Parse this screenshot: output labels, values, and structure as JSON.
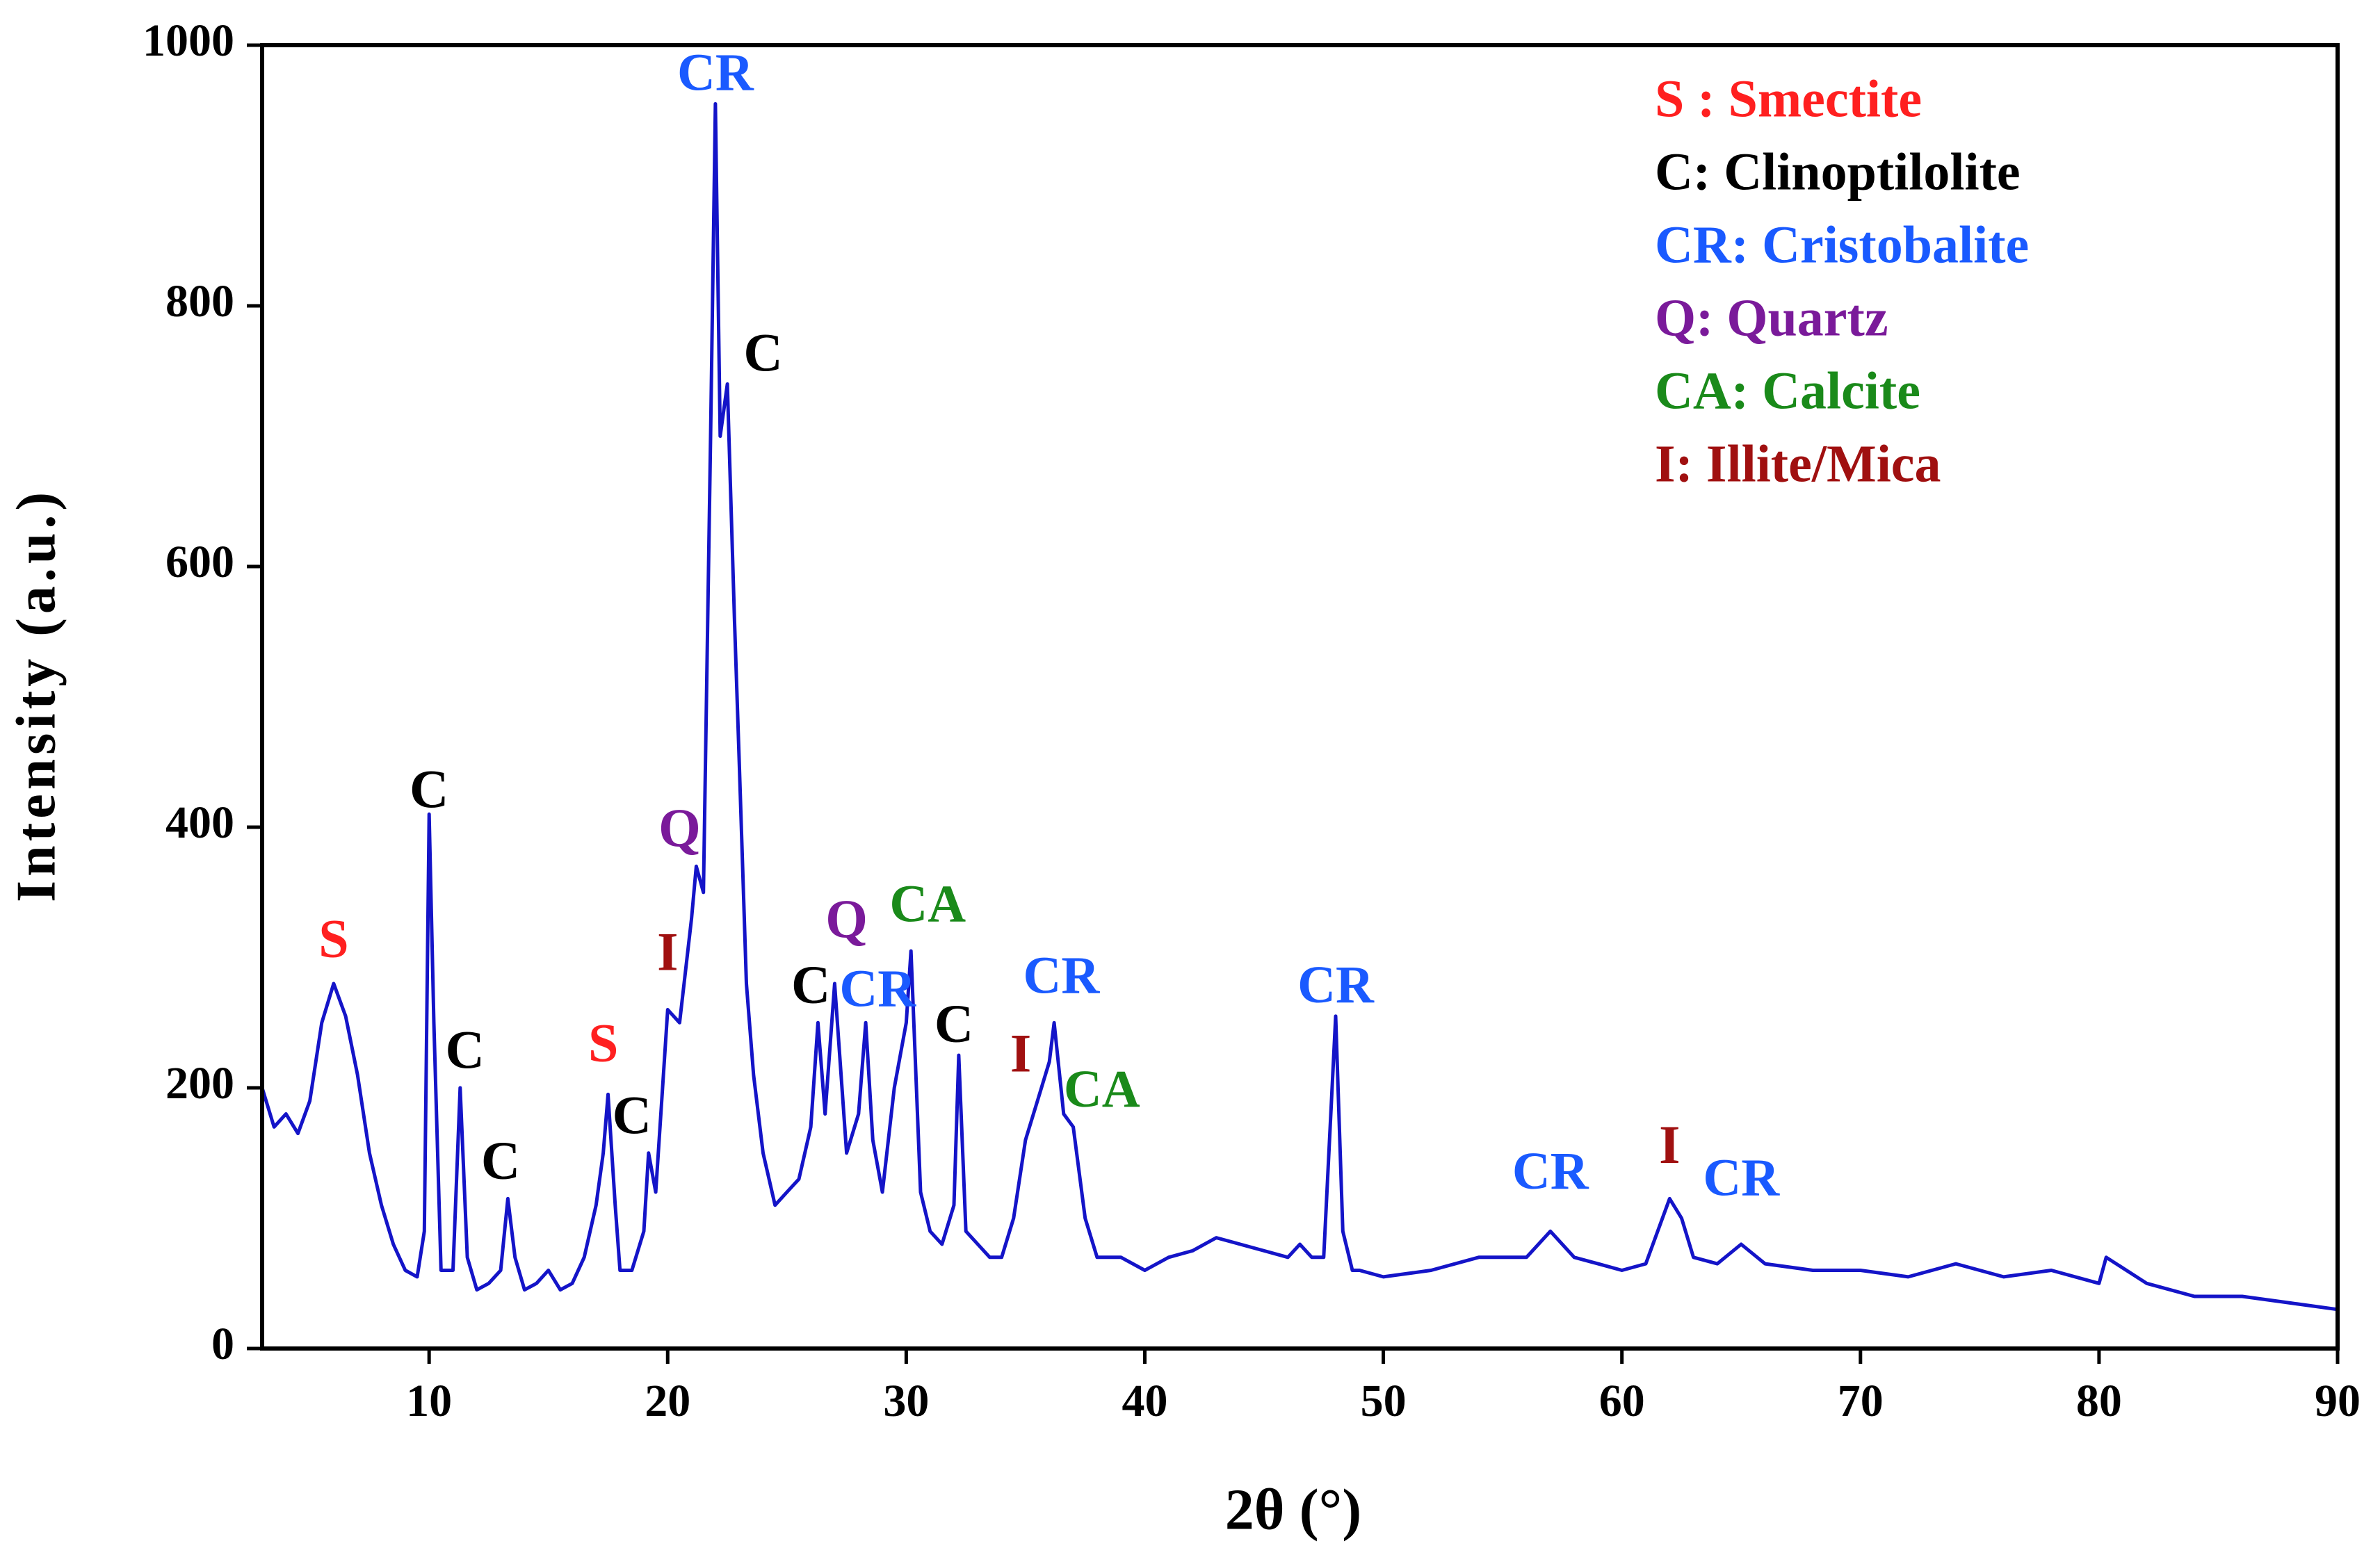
{
  "chart_data": {
    "type": "line",
    "xlabel": "2θ (°)",
    "ylabel": "Intensity (a.u.)",
    "xlim": [
      3,
      90
    ],
    "ylim": [
      0,
      1000
    ],
    "xticks": [
      10,
      20,
      30,
      40,
      50,
      60,
      70,
      80,
      90
    ],
    "yticks": [
      0,
      200,
      400,
      600,
      800,
      1000
    ],
    "x": [
      3,
      3.5,
      4,
      4.5,
      5,
      5.5,
      6,
      6.5,
      7,
      7.5,
      8,
      8.5,
      9,
      9.5,
      9.8,
      10,
      10.2,
      10.5,
      11,
      11.3,
      11.6,
      12,
      12.5,
      13,
      13.3,
      13.6,
      14,
      14.5,
      15,
      15.5,
      16,
      16.5,
      17,
      17.3,
      17.5,
      17.8,
      18,
      18.5,
      19,
      19.2,
      19.5,
      20,
      20.5,
      21,
      21.2,
      21.5,
      21.8,
      22,
      22.2,
      22.5,
      22.8,
      23,
      23.3,
      23.6,
      24,
      24.5,
      25,
      25.5,
      26,
      26.3,
      26.6,
      27,
      27.5,
      28,
      28.3,
      28.6,
      29,
      29.5,
      30,
      30.2,
      30.6,
      31,
      31.5,
      32,
      32.2,
      32.5,
      33,
      33.5,
      34,
      34.5,
      35,
      35.5,
      36,
      36.2,
      36.6,
      37,
      37.5,
      38,
      39,
      40,
      41,
      42,
      43,
      44,
      45,
      46,
      46.5,
      47,
      47.5,
      48,
      48.3,
      48.7,
      49,
      50,
      52,
      54,
      55,
      56,
      57,
      58,
      59,
      60,
      61,
      62,
      62.5,
      63,
      64,
      65,
      66,
      68,
      70,
      72,
      74,
      76,
      78,
      80,
      80.3,
      82,
      84,
      86,
      88,
      90
    ],
    "series": [
      {
        "color": "#1414c8",
        "values": [
          200,
          170,
          180,
          165,
          190,
          250,
          280,
          255,
          210,
          150,
          110,
          80,
          60,
          55,
          90,
          410,
          250,
          60,
          60,
          200,
          70,
          45,
          50,
          60,
          115,
          70,
          45,
          50,
          60,
          45,
          50,
          70,
          110,
          150,
          195,
          110,
          60,
          60,
          90,
          150,
          120,
          260,
          250,
          330,
          370,
          350,
          700,
          955,
          700,
          740,
          560,
          450,
          280,
          210,
          150,
          110,
          120,
          130,
          170,
          250,
          180,
          280,
          150,
          180,
          250,
          160,
          120,
          200,
          250,
          305,
          120,
          90,
          80,
          110,
          225,
          90,
          80,
          70,
          70,
          100,
          160,
          190,
          220,
          250,
          180,
          170,
          100,
          70,
          70,
          60,
          70,
          75,
          85,
          80,
          75,
          70,
          80,
          70,
          70,
          255,
          90,
          60,
          60,
          55,
          60,
          70,
          70,
          70,
          90,
          70,
          65,
          60,
          65,
          115,
          100,
          70,
          65,
          80,
          65,
          60,
          60,
          55,
          65,
          55,
          60,
          50,
          70,
          50,
          40,
          40,
          35,
          30
        ]
      }
    ],
    "annotations": [
      {
        "text": "S",
        "x": 6,
        "y": 310,
        "color": "#ff2020"
      },
      {
        "text": "C",
        "x": 10,
        "y": 425,
        "color": "#000000"
      },
      {
        "text": "C",
        "x": 11.5,
        "y": 225,
        "color": "#000000"
      },
      {
        "text": "C",
        "x": 13,
        "y": 140,
        "color": "#000000"
      },
      {
        "text": "S",
        "x": 17.3,
        "y": 230,
        "color": "#ff2020"
      },
      {
        "text": "C",
        "x": 18.5,
        "y": 175,
        "color": "#000000"
      },
      {
        "text": "I",
        "x": 20,
        "y": 300,
        "color": "#a01010"
      },
      {
        "text": "Q",
        "x": 20.5,
        "y": 395,
        "color": "#7a1a9a"
      },
      {
        "text": "CR",
        "x": 22,
        "y": 975,
        "color": "#1a5aff"
      },
      {
        "text": "C",
        "x": 24,
        "y": 760,
        "color": "#000000"
      },
      {
        "text": "C",
        "x": 26,
        "y": 275,
        "color": "#000000"
      },
      {
        "text": "Q",
        "x": 27.5,
        "y": 325,
        "color": "#7a1a9a"
      },
      {
        "text": "CR",
        "x": 28.8,
        "y": 272,
        "color": "#1a5aff"
      },
      {
        "text": "CA",
        "x": 30.9,
        "y": 337,
        "color": "#1a8a1a"
      },
      {
        "text": "C",
        "x": 32,
        "y": 245,
        "color": "#000000"
      },
      {
        "text": "I",
        "x": 34.8,
        "y": 222,
        "color": "#a01010"
      },
      {
        "text": "CR",
        "x": 36.5,
        "y": 282,
        "color": "#1a5aff"
      },
      {
        "text": "CA",
        "x": 38.2,
        "y": 195,
        "color": "#1a8a1a"
      },
      {
        "text": "CR",
        "x": 48,
        "y": 275,
        "color": "#1a5aff"
      },
      {
        "text": "CR",
        "x": 57,
        "y": 132,
        "color": "#1a5aff"
      },
      {
        "text": "I",
        "x": 62,
        "y": 152,
        "color": "#a01010"
      },
      {
        "text": "CR",
        "x": 65,
        "y": 127,
        "color": "#1a5aff"
      }
    ],
    "legend": [
      {
        "text": "S : Smectite",
        "color": "#ff2020"
      },
      {
        "text": "C: Clinoptilolite",
        "color": "#000000"
      },
      {
        "text": "CR: Cristobalite",
        "color": "#1a5aff"
      },
      {
        "text": "Q: Quartz",
        "color": "#7a1a9a"
      },
      {
        "text": "CA: Calcite",
        "color": "#1a8a1a"
      },
      {
        "text": "I: Illite/Mica",
        "color": "#a01010"
      }
    ]
  }
}
